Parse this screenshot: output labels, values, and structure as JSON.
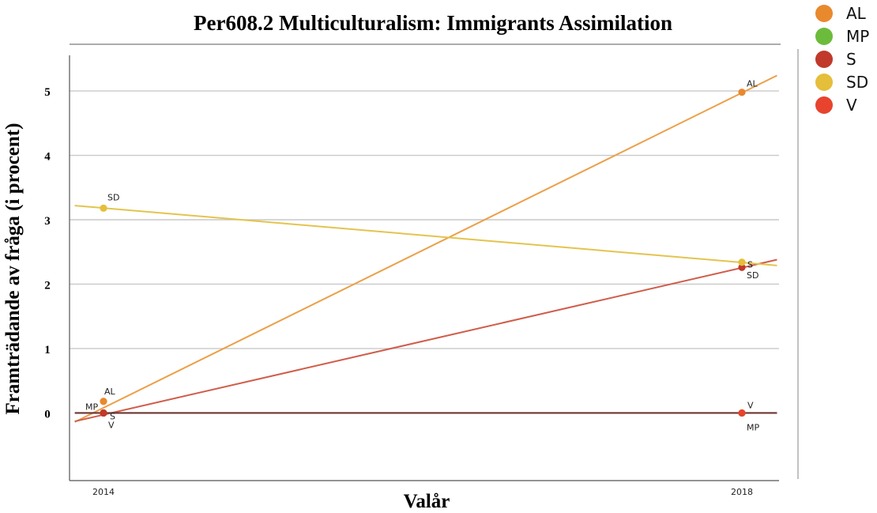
{
  "chart_data": {
    "type": "scatter",
    "title": "Per608.2 Multiculturalism: Immigrants Assimilation",
    "xlabel": "Valår",
    "ylabel": "Framträdande av fråga (i procent)",
    "x_ticks": [
      "2014",
      "2018"
    ],
    "y_ticks": [
      0,
      1,
      2,
      3,
      4,
      5
    ],
    "ylim": [
      -1.05,
      5.7
    ],
    "grid": "horizontal",
    "legend_position": "right",
    "series": [
      {
        "name": "AL",
        "color": "#E8892E",
        "line_color": "#EBA048",
        "points": [
          {
            "x": 2014,
            "y": 0.18,
            "label": "AL"
          },
          {
            "x": 2018,
            "y": 4.98,
            "label": "AL"
          }
        ],
        "fit": [
          {
            "x": 2013.82,
            "y": -0.14
          },
          {
            "x": 2018.22,
            "y": 5.24
          }
        ]
      },
      {
        "name": "MP",
        "color": "#6DBB3C",
        "points": [
          {
            "x": 2014,
            "y": 0.0,
            "label": "MP"
          },
          {
            "x": 2018,
            "y": 0.0,
            "label": "MP"
          }
        ]
      },
      {
        "name": "S",
        "color": "#C0392B",
        "line_color": "#D05C4A",
        "points": [
          {
            "x": 2014,
            "y": 0.0,
            "label": "S"
          },
          {
            "x": 2018,
            "y": 2.26,
            "label": "S"
          }
        ],
        "fit": [
          {
            "x": 2013.82,
            "y": -0.13
          },
          {
            "x": 2018.22,
            "y": 2.38
          }
        ]
      },
      {
        "name": "SD",
        "color": "#E5BE3A",
        "line_color": "#E3C44E",
        "points": [
          {
            "x": 2014,
            "y": 3.18,
            "label": "SD"
          },
          {
            "x": 2018,
            "y": 2.34,
            "label": "SD"
          }
        ],
        "fit": [
          {
            "x": 2013.82,
            "y": 3.22
          },
          {
            "x": 2018.22,
            "y": 2.29
          }
        ]
      },
      {
        "name": "V",
        "color": "#E8432D",
        "line_color": "#6B3530",
        "points": [
          {
            "x": 2014,
            "y": 0.0,
            "label": "V"
          },
          {
            "x": 2018,
            "y": 0.0,
            "label": "V"
          }
        ],
        "fit": [
          {
            "x": 2013.82,
            "y": 0.0
          },
          {
            "x": 2018.22,
            "y": 0.0
          }
        ]
      }
    ]
  }
}
